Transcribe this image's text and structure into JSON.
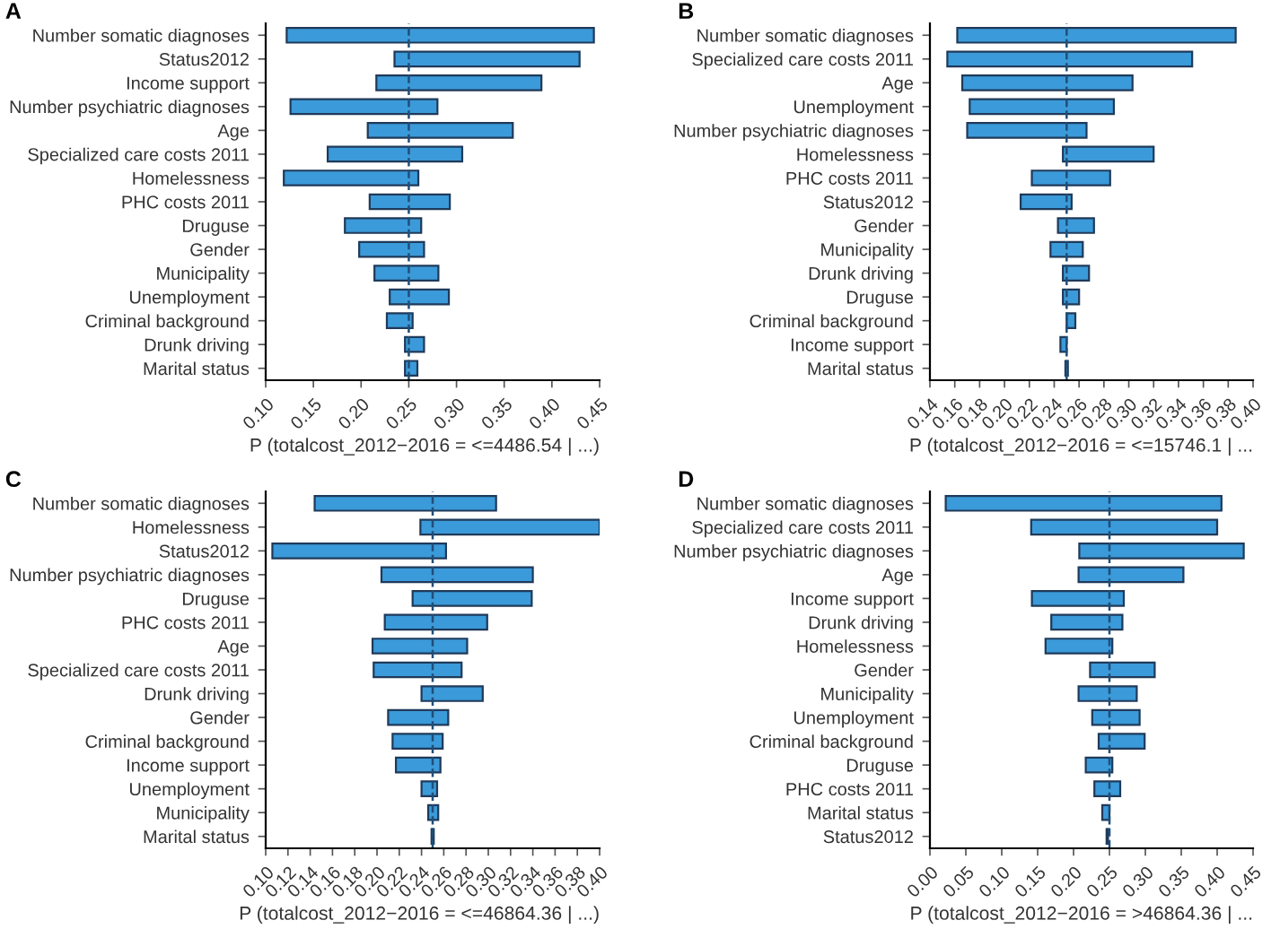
{
  "chart_data": [
    {
      "type": "bar",
      "orientation": "horizontal",
      "title": "A",
      "xlabel": "P (totalcost_2012−2016 = <=4486.54 | ...)",
      "color": "#3b9ad9",
      "categories": [
        "Number somatic diagnoses",
        "Status2012",
        "Income support",
        "Number psychiatric diagnoses",
        "Age",
        "Specialized care costs 2011",
        "Homelessness",
        "PHC costs 2011",
        "Druguse",
        "Gender",
        "Municipality",
        "Unemployment",
        "Criminal background",
        "Drunk driving",
        "Marital status"
      ],
      "base": [
        0.122,
        0.235,
        0.216,
        0.126,
        0.207,
        0.165,
        0.119,
        0.209,
        0.183,
        0.198,
        0.214,
        0.23,
        0.227,
        0.246,
        0.246
      ],
      "values": [
        0.322,
        0.194,
        0.173,
        0.154,
        0.152,
        0.141,
        0.141,
        0.084,
        0.08,
        0.068,
        0.067,
        0.062,
        0.027,
        0.02,
        0.013
      ],
      "xlim": [
        0.1,
        0.45
      ],
      "xticks": [
        {
          "value": 0.1,
          "label": "0.10"
        },
        {
          "value": 0.15,
          "label": "0.15"
        },
        {
          "value": 0.2,
          "label": "0.20"
        },
        {
          "value": 0.25,
          "label": "0.25"
        },
        {
          "value": 0.3,
          "label": "0.30"
        },
        {
          "value": 0.35,
          "label": "0.35"
        },
        {
          "value": 0.4,
          "label": "0.40"
        },
        {
          "value": 0.45,
          "label": "0.45"
        }
      ],
      "ref_lines": [
        {
          "axis": "x",
          "value": 0.25,
          "line_style": "dashed",
          "color": "#1f4e79"
        }
      ]
    },
    {
      "type": "bar",
      "orientation": "horizontal",
      "title": "B",
      "xlabel": "P (totalcost_2012−2016 = <=15746.1 | ...",
      "color": "#3b9ad9",
      "categories": [
        "Number somatic diagnoses",
        "Specialized care costs 2011",
        "Age",
        "Unemployment",
        "Number psychiatric diagnoses",
        "Homelessness",
        "PHC costs 2011",
        "Status2012",
        "Gender",
        "Municipality",
        "Drunk driving",
        "Druguse",
        "Criminal background",
        "Income support",
        "Marital status"
      ],
      "base": [
        0.162,
        0.154,
        0.166,
        0.172,
        0.17,
        0.247,
        0.222,
        0.213,
        0.243,
        0.237,
        0.247,
        0.247,
        0.25,
        0.245,
        0.249
      ],
      "values": [
        0.224,
        0.197,
        0.137,
        0.116,
        0.096,
        0.073,
        0.063,
        0.041,
        0.029,
        0.026,
        0.021,
        0.013,
        0.007,
        0.005,
        0.002
      ],
      "xlim": [
        0.14,
        0.4
      ],
      "xticks": [
        {
          "value": 0.14,
          "label": "0.14"
        },
        {
          "value": 0.16,
          "label": "0.16"
        },
        {
          "value": 0.18,
          "label": "0.18"
        },
        {
          "value": 0.2,
          "label": "0.20"
        },
        {
          "value": 0.22,
          "label": "0.22"
        },
        {
          "value": 0.24,
          "label": "0.24"
        },
        {
          "value": 0.26,
          "label": "0.26"
        },
        {
          "value": 0.28,
          "label": "0.28"
        },
        {
          "value": 0.3,
          "label": "0.30"
        },
        {
          "value": 0.32,
          "label": "0.32"
        },
        {
          "value": 0.34,
          "label": "0.34"
        },
        {
          "value": 0.36,
          "label": "0.36"
        },
        {
          "value": 0.38,
          "label": "0.38"
        },
        {
          "value": 0.4,
          "label": "0.40"
        }
      ],
      "ref_lines": [
        {
          "axis": "x",
          "value": 0.25,
          "line_style": "dashed",
          "color": "#1f4e79"
        }
      ]
    },
    {
      "type": "bar",
      "orientation": "horizontal",
      "title": "C",
      "xlabel": "P (totalcost_2012−2016 = <=46864.36 | ...)",
      "color": "#3b9ad9",
      "categories": [
        "Number somatic diagnoses",
        "Homelessness",
        "Status2012",
        "Number psychiatric diagnoses",
        "Druguse",
        "PHC costs 2011",
        "Age",
        "Specialized care costs 2011",
        "Drunk driving",
        "Gender",
        "Criminal background",
        "Income support",
        "Unemployment",
        "Municipality",
        "Marital status"
      ],
      "base": [
        0.144,
        0.239,
        0.106,
        0.204,
        0.232,
        0.207,
        0.196,
        0.197,
        0.24,
        0.21,
        0.214,
        0.217,
        0.24,
        0.246,
        0.249
      ],
      "values": [
        0.163,
        0.161,
        0.156,
        0.136,
        0.107,
        0.092,
        0.085,
        0.079,
        0.055,
        0.054,
        0.045,
        0.04,
        0.014,
        0.009,
        0.002
      ],
      "xlim": [
        0.1,
        0.4
      ],
      "xticks": [
        {
          "value": 0.1,
          "label": "0.10"
        },
        {
          "value": 0.12,
          "label": "0.12"
        },
        {
          "value": 0.14,
          "label": "0.14"
        },
        {
          "value": 0.16,
          "label": "0.16"
        },
        {
          "value": 0.18,
          "label": "0.18"
        },
        {
          "value": 0.2,
          "label": "0.20"
        },
        {
          "value": 0.22,
          "label": "0.22"
        },
        {
          "value": 0.24,
          "label": "0.24"
        },
        {
          "value": 0.26,
          "label": "0.26"
        },
        {
          "value": 0.28,
          "label": "0.28"
        },
        {
          "value": 0.3,
          "label": "0.30"
        },
        {
          "value": 0.32,
          "label": "0.32"
        },
        {
          "value": 0.34,
          "label": "0.34"
        },
        {
          "value": 0.36,
          "label": "0.36"
        },
        {
          "value": 0.38,
          "label": "0.38"
        },
        {
          "value": 0.4,
          "label": "0.40"
        }
      ],
      "ref_lines": [
        {
          "axis": "x",
          "value": 0.25,
          "line_style": "dashed",
          "color": "#1f4e79"
        }
      ]
    },
    {
      "type": "bar",
      "orientation": "horizontal",
      "title": "D",
      "xlabel": "P (totalcost_2012−2016 = >46864.36 | ...",
      "color": "#3b9ad9",
      "categories": [
        "Number somatic diagnoses",
        "Specialized care costs 2011",
        "Number psychiatric diagnoses",
        "Age",
        "Income support",
        "Drunk driving",
        "Homelessness",
        "Gender",
        "Municipality",
        "Unemployment",
        "Criminal background",
        "Druguse",
        "PHC costs 2011",
        "Marital status",
        "Status2012"
      ],
      "base": [
        0.022,
        0.141,
        0.208,
        0.207,
        0.142,
        0.169,
        0.161,
        0.223,
        0.207,
        0.226,
        0.235,
        0.217,
        0.229,
        0.24,
        0.246
      ],
      "values": [
        0.384,
        0.259,
        0.229,
        0.146,
        0.128,
        0.099,
        0.093,
        0.09,
        0.081,
        0.066,
        0.064,
        0.037,
        0.036,
        0.01,
        0.002
      ],
      "xlim": [
        0.0,
        0.45
      ],
      "xticks": [
        {
          "value": 0.0,
          "label": "0.00"
        },
        {
          "value": 0.05,
          "label": "0.05"
        },
        {
          "value": 0.1,
          "label": "0.10"
        },
        {
          "value": 0.15,
          "label": "0.15"
        },
        {
          "value": 0.2,
          "label": "0.20"
        },
        {
          "value": 0.25,
          "label": "0.25"
        },
        {
          "value": 0.3,
          "label": "0.30"
        },
        {
          "value": 0.35,
          "label": "0.35"
        },
        {
          "value": 0.4,
          "label": "0.40"
        },
        {
          "value": 0.45,
          "label": "0.45"
        }
      ],
      "ref_lines": [
        {
          "axis": "x",
          "value": 0.25,
          "line_style": "dashed",
          "color": "#1f4e79"
        }
      ]
    }
  ]
}
